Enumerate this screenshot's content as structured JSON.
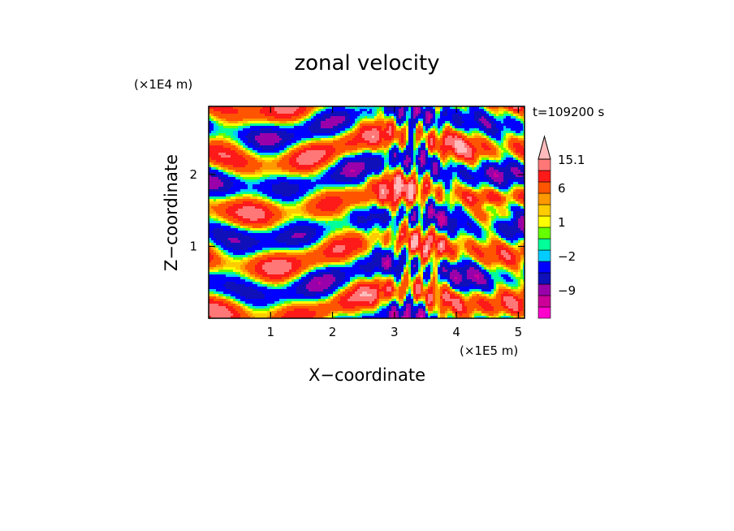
{
  "chart_data": {
    "type": "heatmap",
    "title": "zonal velocity",
    "xlabel": "X−coordinate",
    "ylabel": "Z−coordinate",
    "x_unit": "(×1E5 m)",
    "y_unit": "(×1E4 m)",
    "time_label": "t=109200 s",
    "xlim": [
      0,
      5.1
    ],
    "ylim": [
      0,
      2.95
    ],
    "x_ticks": [
      {
        "value": 1,
        "label": "1"
      },
      {
        "value": 2,
        "label": "2"
      },
      {
        "value": 3,
        "label": "3"
      },
      {
        "value": 4,
        "label": "4"
      },
      {
        "value": 5,
        "label": "5"
      }
    ],
    "y_ticks": [
      {
        "value": 1,
        "label": "1"
      },
      {
        "value": 2,
        "label": "2"
      }
    ],
    "colorbar": {
      "levels": [
        -15,
        -12,
        -9,
        -6,
        -3,
        -2,
        -1,
        0,
        1,
        2,
        3,
        6,
        9,
        12,
        15.1
      ],
      "colors": [
        "#ff00cc",
        "#cc0099",
        "#9900aa",
        "#1010bb",
        "#0000ff",
        "#00ccff",
        "#00ff99",
        "#66ff00",
        "#ffff00",
        "#ffcc00",
        "#ff9900",
        "#ff5500",
        "#ff1a1a",
        "#ff7777",
        "#ffbbbb"
      ],
      "labels": [
        {
          "value": 15.1,
          "text": "15.1"
        },
        {
          "value": 6,
          "text": "6"
        },
        {
          "value": 1,
          "text": "1"
        },
        {
          "value": -2,
          "text": "−2"
        },
        {
          "value": -9,
          "text": "−9"
        }
      ]
    }
  }
}
